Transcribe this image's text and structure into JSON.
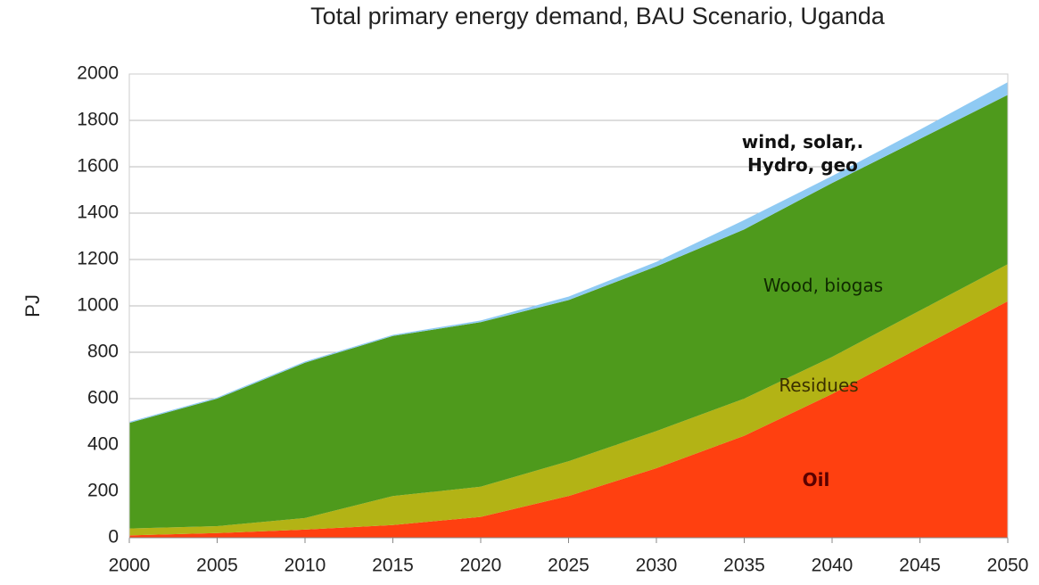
{
  "chart_data": {
    "type": "stacked_area",
    "title": "Total primary energy demand, BAU Scenario, Uganda",
    "y_label": "PJ",
    "x": [
      2000,
      2005,
      2010,
      2015,
      2020,
      2025,
      2030,
      2035,
      2040,
      2045,
      2050
    ],
    "xlim": [
      2000,
      2050
    ],
    "xticks": [
      2000,
      2005,
      2010,
      2015,
      2020,
      2025,
      2030,
      2035,
      2040,
      2045,
      2050
    ],
    "ylim": [
      0,
      2000
    ],
    "yticks": [
      0,
      200,
      400,
      600,
      800,
      1000,
      1200,
      1400,
      1600,
      1800,
      2000
    ],
    "grid": true,
    "series": [
      {
        "name": "Oil",
        "color": "#ff4010",
        "values": [
          10,
          20,
          35,
          55,
          90,
          180,
          300,
          440,
          620,
          820,
          1020
        ]
      },
      {
        "name": "Residues",
        "color": "#b3b315",
        "values": [
          30,
          30,
          50,
          125,
          130,
          150,
          160,
          160,
          160,
          160,
          160
        ]
      },
      {
        "name": "Wood, biogas",
        "color": "#4e9a1c",
        "values": [
          455,
          550,
          670,
          690,
          710,
          695,
          710,
          730,
          750,
          740,
          730
        ]
      },
      {
        "name": "wind, solar,. Hydro, geo",
        "color": "#8fcaf3",
        "values": [
          5,
          5,
          5,
          5,
          7,
          15,
          20,
          40,
          30,
          40,
          55
        ]
      }
    ]
  }
}
